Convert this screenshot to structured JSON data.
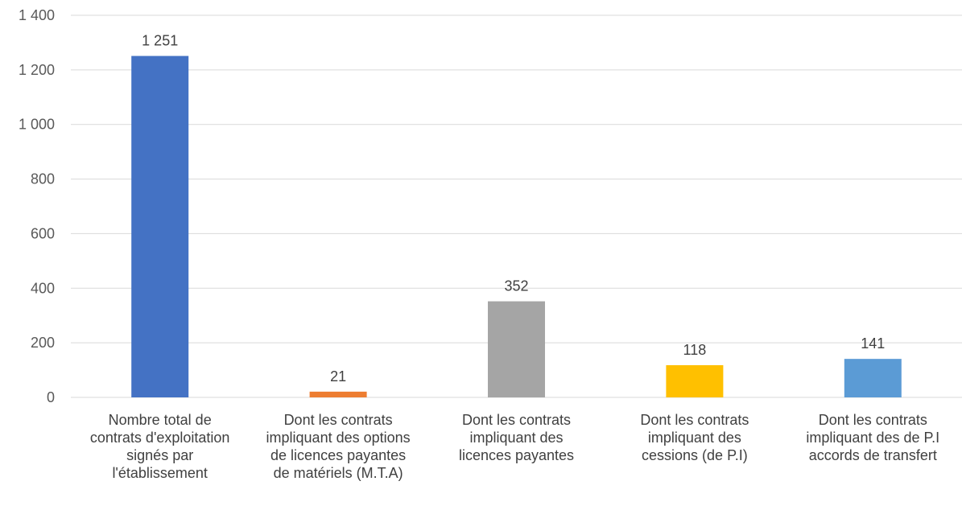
{
  "chart_data": {
    "type": "bar",
    "title": "",
    "xlabel": "",
    "ylabel": "",
    "ylim": [
      0,
      1400
    ],
    "yticks": [
      0,
      200,
      400,
      600,
      800,
      1000,
      1200,
      1400
    ],
    "ytick_labels": [
      "0",
      "200",
      "400",
      "600",
      "800",
      "1 000",
      "1 200",
      "1 400"
    ],
    "grid": true,
    "categories": [
      "Nombre total de\ncontrats d'exploitation\nsignés par\nl'établissement",
      "Dont les contrats\nimpliquant des options\nde licences payantes\nde matériels (M.T.A)",
      "Dont les contrats\nimpliquant des\nlicences payantes",
      "Dont les contrats\nimpliquant des\ncessions (de P.I)",
      "Dont les contrats\nimpliquant des de P.I\naccords de transfert"
    ],
    "values": [
      1251,
      21,
      352,
      118,
      141
    ],
    "value_labels": [
      "1 251",
      "21",
      "352",
      "118",
      "141"
    ],
    "colors": [
      "#4472C4",
      "#ED7D31",
      "#A5A5A5",
      "#FFC000",
      "#5B9BD5"
    ]
  }
}
